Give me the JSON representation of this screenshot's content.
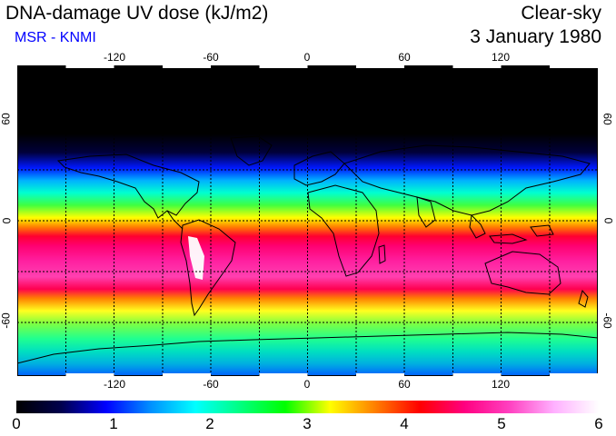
{
  "header": {
    "title": "DNA-damage UV dose (kJ/m2)",
    "subtitle": "MSR - KNMI",
    "condition": "Clear-sky",
    "date": "3 January 1980"
  },
  "map": {
    "lon_ticks": [
      "-120",
      "-60",
      "0",
      "60",
      "120"
    ],
    "lat_ticks_left": [
      "60",
      "0",
      "-60"
    ],
    "lat_ticks_right": [
      "60",
      "0",
      "-60"
    ]
  },
  "colorbar": {
    "labels": [
      "0",
      "1",
      "2",
      "3",
      "4",
      "5",
      "6"
    ],
    "min": 0,
    "max": 6,
    "colors": [
      "#000000",
      "#00004d",
      "#0000ff",
      "#0090ff",
      "#00ffff",
      "#00ff80",
      "#00ff00",
      "#ffff00",
      "#ff8000",
      "#ff0000",
      "#ff0080",
      "#ff40c0",
      "#ffb0ff",
      "#ffffff"
    ]
  }
}
